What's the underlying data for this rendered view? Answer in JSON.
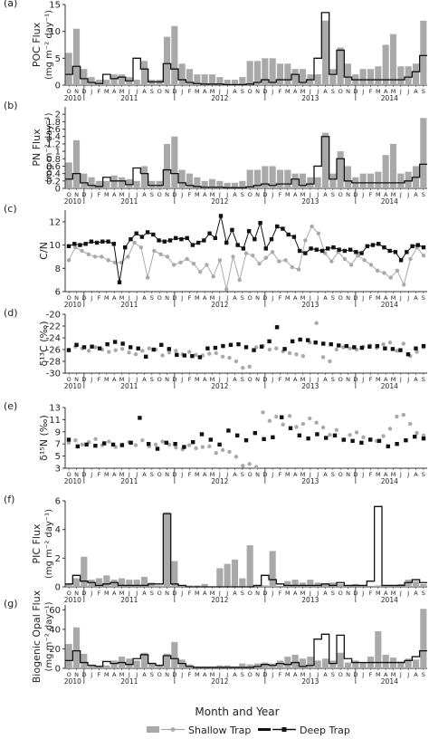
{
  "figure": {
    "x_month_letters": [
      "O",
      "N",
      "D",
      "J",
      "F",
      "M",
      "A",
      "M",
      "J",
      "J",
      "A",
      "S",
      "O",
      "N",
      "D",
      "J",
      "F",
      "M",
      "A",
      "M",
      "J",
      "J",
      "A",
      "S",
      "O",
      "N",
      "D",
      "J",
      "F",
      "M",
      "A",
      "M",
      "J",
      "J",
      "A",
      "S",
      "O",
      "N",
      "D",
      "J",
      "F",
      "M",
      "A",
      "M",
      "J",
      "J",
      "A",
      "S"
    ],
    "year_labels": [
      "2010",
      "2011",
      "2012",
      "2013",
      "2014"
    ],
    "xlabel": "Month and Year",
    "legend": [
      "Shallow Trap",
      "Deep Trap"
    ],
    "colors": {
      "shallow": "#a9a9a9",
      "deep": "#111111"
    }
  },
  "chart_data": [
    {
      "panel": "(a)",
      "type": "bar+step",
      "ylabel_line1": "POC Flux",
      "ylabel_line2": "(mg m⁻² day⁻¹)",
      "ylim": [
        0,
        15
      ],
      "ticks": [
        0,
        5,
        10,
        15
      ],
      "series": [
        {
          "name": "Shallow Trap",
          "kind": "bar",
          "values": [
            6,
            10.5,
            3,
            1.5,
            1,
            1,
            2,
            2,
            1.5,
            1,
            4.5,
            1,
            1,
            9,
            11,
            4,
            3,
            2,
            2,
            2,
            1.5,
            1,
            1,
            1.5,
            4.5,
            4.5,
            5,
            5,
            4,
            4,
            3,
            3,
            2,
            2,
            12,
            3,
            7,
            4,
            2,
            3,
            3,
            3.5,
            7.5,
            9.5,
            3.5,
            3.5,
            4,
            12
          ]
        },
        {
          "name": "Deep Trap",
          "kind": "step",
          "values": [
            2,
            3.5,
            1.2,
            0.5,
            0.3,
            2,
            1.2,
            1.5,
            0.8,
            5,
            3,
            0.6,
            0.6,
            4,
            3,
            1,
            0.5,
            0.3,
            0.2,
            0.2,
            0.2,
            0.1,
            0.1,
            0.1,
            0.2,
            0.5,
            1,
            0.5,
            1,
            1,
            2,
            0.5,
            1,
            5,
            13.5,
            2,
            6.5,
            1.5,
            1,
            1,
            1,
            1,
            1,
            1,
            1,
            1.5,
            2.5,
            5.5
          ]
        }
      ]
    },
    {
      "panel": "(b)",
      "type": "bar+step",
      "ylabel_line1": "PN Flux",
      "ylabel_line2": "(mg m⁻² day⁻¹)",
      "ylim": [
        0,
        2.2
      ],
      "ticks": [
        0,
        0.2,
        0.4,
        0.6,
        0.8,
        1.0,
        1.2,
        1.4,
        1.6,
        1.8,
        2.0
      ],
      "series": [
        {
          "name": "Shallow Trap",
          "kind": "bar",
          "values": [
            0.7,
            1.3,
            0.4,
            0.3,
            0.2,
            0.2,
            0.35,
            0.3,
            0.25,
            0.2,
            0.6,
            0.2,
            0.2,
            1.2,
            1.4,
            0.5,
            0.4,
            0.3,
            0.2,
            0.25,
            0.2,
            0.15,
            0.15,
            0.2,
            0.5,
            0.5,
            0.6,
            0.6,
            0.5,
            0.5,
            0.4,
            0.4,
            0.3,
            0.3,
            1.5,
            0.4,
            1.0,
            0.6,
            0.3,
            0.4,
            0.4,
            0.45,
            0.9,
            1.2,
            0.4,
            0.45,
            0.6,
            1.9
          ]
        },
        {
          "name": "Deep Trap",
          "kind": "step",
          "values": [
            0.25,
            0.4,
            0.15,
            0.08,
            0.05,
            0.3,
            0.2,
            0.2,
            0.1,
            0.55,
            0.4,
            0.08,
            0.08,
            0.5,
            0.4,
            0.15,
            0.08,
            0.05,
            0.03,
            0.03,
            0.03,
            0.02,
            0.02,
            0.02,
            0.04,
            0.08,
            0.12,
            0.08,
            0.12,
            0.12,
            0.25,
            0.08,
            0.12,
            0.6,
            1.4,
            0.25,
            0.8,
            0.2,
            0.15,
            0.15,
            0.15,
            0.15,
            0.15,
            0.15,
            0.15,
            0.2,
            0.3,
            0.65
          ]
        }
      ]
    },
    {
      "panel": "(c)",
      "type": "line",
      "ylabel_line1": "C/N",
      "ylabel_line2": "",
      "ylim": [
        6,
        13
      ],
      "ticks": [
        6,
        8,
        10,
        12
      ],
      "series": [
        {
          "name": "Shallow Trap",
          "kind": "points",
          "values": [
            8.7,
            9.8,
            9.5,
            9.2,
            9.0,
            9.0,
            8.7,
            8.5,
            8.5,
            9.0,
            10.2,
            9.8,
            7.2,
            9.5,
            9.2,
            9.0,
            8.3,
            8.5,
            8.8,
            8.4,
            7.7,
            8.3,
            7.3,
            8.7,
            6.2,
            9.0,
            7.0,
            9.3,
            9.1,
            8.4,
            8.9,
            9.4,
            8.6,
            8.7,
            8.1,
            7.9,
            10.4,
            11.6,
            11.0,
            9.3,
            8.6,
            9.4,
            8.8,
            8.3,
            9.1,
            8.7,
            8.3,
            7.8,
            7.6,
            7.2,
            7.8,
            6.6,
            8.8,
            9.8,
            9.1
          ]
        },
        {
          "name": "Deep Trap",
          "kind": "points",
          "values": [
            9.9,
            10.1,
            10.0,
            10.1,
            10.3,
            10.2,
            10.3,
            10.3,
            10.1,
            6.8,
            9.8,
            10.5,
            11.0,
            10.7,
            11.1,
            10.9,
            10.4,
            10.3,
            10.4,
            10.6,
            10.5,
            10.6,
            10.0,
            10.2,
            10.4,
            11.0,
            10.6,
            12.5,
            10.2,
            11.3,
            10.0,
            9.7,
            11.2,
            10.5,
            11.9,
            9.7,
            10.5,
            11.6,
            11.4,
            10.9,
            10.7,
            9.5,
            9.3,
            9.7,
            9.6,
            9.5,
            9.7,
            9.8,
            9.6,
            9.5,
            9.6,
            9.4,
            9.3,
            9.9,
            10.0,
            10.1,
            9.8,
            9.5,
            9.4,
            8.7,
            9.4,
            9.9,
            10.0,
            9.8
          ]
        }
      ]
    },
    {
      "panel": "(d)",
      "type": "scatter",
      "ylabel_line1": "δ¹³C (‰)",
      "ylabel_line2": "",
      "ylim": [
        -30,
        -20
      ],
      "ticks": [
        -30,
        -28,
        -26,
        -24,
        -22,
        -20
      ],
      "series": [
        {
          "name": "Shallow Trap",
          "kind": "points",
          "values": [
            -26,
            -25.5,
            -25.8,
            -26.2,
            -25.6,
            -26,
            -26.4,
            -26.1,
            -25.9,
            -26.5,
            -26.8,
            -26.2,
            -25.8,
            -26,
            -27,
            -26.5,
            -26.2,
            -26.8,
            -26.4,
            -26.9,
            -27,
            -26.7,
            -26.6,
            -27.2,
            -27.4,
            -28,
            -29.1,
            -28.9,
            -25.6,
            -25.4,
            -26,
            -25.8,
            -26.3,
            -26.6,
            -26.8,
            -27.1,
            -24.8,
            -21.5,
            -27.3,
            -28,
            -26,
            -25.6,
            -25.8,
            -26,
            -25.5,
            -25.3,
            -25.7,
            -25.1,
            -24.8,
            -26.2,
            -25,
            -27.1,
            -26.4,
            -25.6
          ]
        },
        {
          "name": "Deep Trap",
          "kind": "points",
          "values": [
            -26.1,
            -25.2,
            -25.6,
            -25.5,
            -25.8,
            -25.1,
            -24.7,
            -25.0,
            -25.6,
            -25.8,
            -27.2,
            -26.0,
            -25.2,
            -25.9,
            -26.9,
            -27.0,
            -27.1,
            -27.3,
            -25.8,
            -25.7,
            -25.4,
            -25.2,
            -25.1,
            -25.6,
            -26.1,
            -25.5,
            -24.6,
            -22.2,
            -25.9,
            -24.6,
            -24.3,
            -24.4,
            -24.8,
            -25.0,
            -25.1,
            -25.3,
            -25.4,
            -25.6,
            -25.7,
            -25.5,
            -25.4,
            -25.8,
            -25.9,
            -26.1,
            -26.8,
            -25.8,
            -25.4
          ]
        }
      ]
    },
    {
      "panel": "(e)",
      "type": "scatter",
      "ylabel_line1": "δ¹⁵N (‰)",
      "ylabel_line2": "",
      "ylim": [
        3,
        13
      ],
      "ticks": [
        3,
        5,
        7,
        9,
        11,
        13
      ],
      "series": [
        {
          "name": "Shallow Trap",
          "kind": "points",
          "values": [
            7.2,
            7.6,
            6.9,
            7.3,
            7.8,
            6.8,
            7.4,
            6.5,
            6.9,
            7.3,
            6.8,
            7.6,
            6.6,
            6.9,
            7.4,
            6.9,
            6.4,
            6.1,
            6.8,
            6.3,
            6.5,
            6.6,
            5.5,
            6.0,
            5.7,
            4.9,
            3.4,
            3.7,
            3.2,
            12.2,
            10.8,
            11.5,
            10.2,
            11.6,
            9.8,
            10.3,
            11.2,
            10.5,
            9.7,
            8.5,
            9.3,
            7.6,
            8.5,
            8.9,
            8.1,
            7.8,
            7.5,
            8.3,
            9.5,
            11.5,
            11.8,
            10.3,
            8.8,
            8.4
          ]
        },
        {
          "name": "Deep Trap",
          "kind": "points",
          "values": [
            7.7,
            6.6,
            6.9,
            6.7,
            7.1,
            6.9,
            6.8,
            7.2,
            11.3,
            7.0,
            6.2,
            7.2,
            7.0,
            6.5,
            7.3,
            8.6,
            7.7,
            6.9,
            9.2,
            8.4,
            7.6,
            8.8,
            7.8,
            8.1,
            11.4,
            9.6,
            8.4,
            7.9,
            8.6,
            8.0,
            8.4,
            7.7,
            7.5,
            7.2,
            7.7,
            7.5,
            6.6,
            7.0,
            7.6,
            8.2,
            7.9
          ]
        }
      ]
    },
    {
      "panel": "(f)",
      "type": "bar+step",
      "ylabel_line1": "PIC Flux",
      "ylabel_line2": "(mg m⁻² day⁻¹)",
      "ylim": [
        0,
        6
      ],
      "ticks": [
        0,
        2,
        4,
        6
      ],
      "series": [
        {
          "name": "Shallow Trap",
          "kind": "bar",
          "values": [
            0.2,
            0.6,
            2.1,
            0.5,
            0.6,
            0.8,
            0.5,
            0.6,
            0.5,
            0.5,
            0.7,
            0.3,
            0.1,
            5.2,
            1.8,
            0.1,
            0.1,
            0.1,
            0.2,
            0,
            1.3,
            1.6,
            1.9,
            0.6,
            2.9,
            0,
            0.1,
            2.5,
            0,
            0.4,
            0.5,
            0.3,
            0.5,
            0.3,
            0.2,
            0.3,
            0.2,
            0.1,
            0.2,
            0.1,
            0,
            0.1,
            0.1,
            0.1,
            0.2,
            0.5,
            0.4,
            0.2
          ]
        },
        {
          "name": "Deep Trap",
          "kind": "step",
          "values": [
            0.2,
            0.8,
            0.4,
            0.3,
            0.1,
            0.2,
            0.3,
            0.1,
            0.1,
            0.1,
            0.1,
            0.2,
            0.2,
            5.1,
            0.2,
            0.1,
            0,
            0,
            0,
            0,
            0,
            0,
            0,
            0,
            0,
            0.1,
            0.8,
            0.5,
            0.2,
            0.1,
            0.1,
            0.1,
            0.1,
            0.1,
            0.2,
            0.1,
            0.3,
            0.1,
            0.1,
            0.1,
            0.4,
            5.6,
            0.1,
            0.1,
            0.1,
            0.3,
            0.5,
            0.3
          ]
        }
      ]
    },
    {
      "panel": "(g)",
      "type": "bar+step",
      "ylabel_line1": "Biogenic Opal Flux",
      "ylabel_line2": "(mg m⁻² day⁻¹)",
      "ylim": [
        0,
        65
      ],
      "ticks": [
        0,
        20,
        40,
        60
      ],
      "series": [
        {
          "name": "Shallow Trap",
          "kind": "bar",
          "values": [
            25,
            42,
            15,
            4,
            3,
            3,
            8,
            12,
            10,
            8,
            16,
            6,
            4,
            15,
            27,
            9,
            4,
            2,
            2,
            2,
            3,
            3,
            2,
            5,
            4,
            5,
            6,
            5,
            8,
            12,
            14,
            10,
            12,
            8,
            10,
            8,
            16,
            6,
            8,
            6,
            12,
            38,
            14,
            11,
            7,
            10,
            9,
            61
          ]
        },
        {
          "name": "Deep Trap",
          "kind": "step",
          "values": [
            8,
            18,
            6,
            3,
            2,
            7,
            5,
            6,
            4,
            10,
            14,
            5,
            3,
            13,
            10,
            5,
            2,
            1,
            1,
            1,
            1,
            1,
            1,
            1,
            1,
            2,
            4,
            3,
            5,
            4,
            6,
            2,
            3,
            30,
            35,
            5,
            34,
            10,
            6,
            6,
            6,
            6,
            6,
            6,
            6,
            8,
            12,
            18
          ]
        }
      ]
    }
  ]
}
